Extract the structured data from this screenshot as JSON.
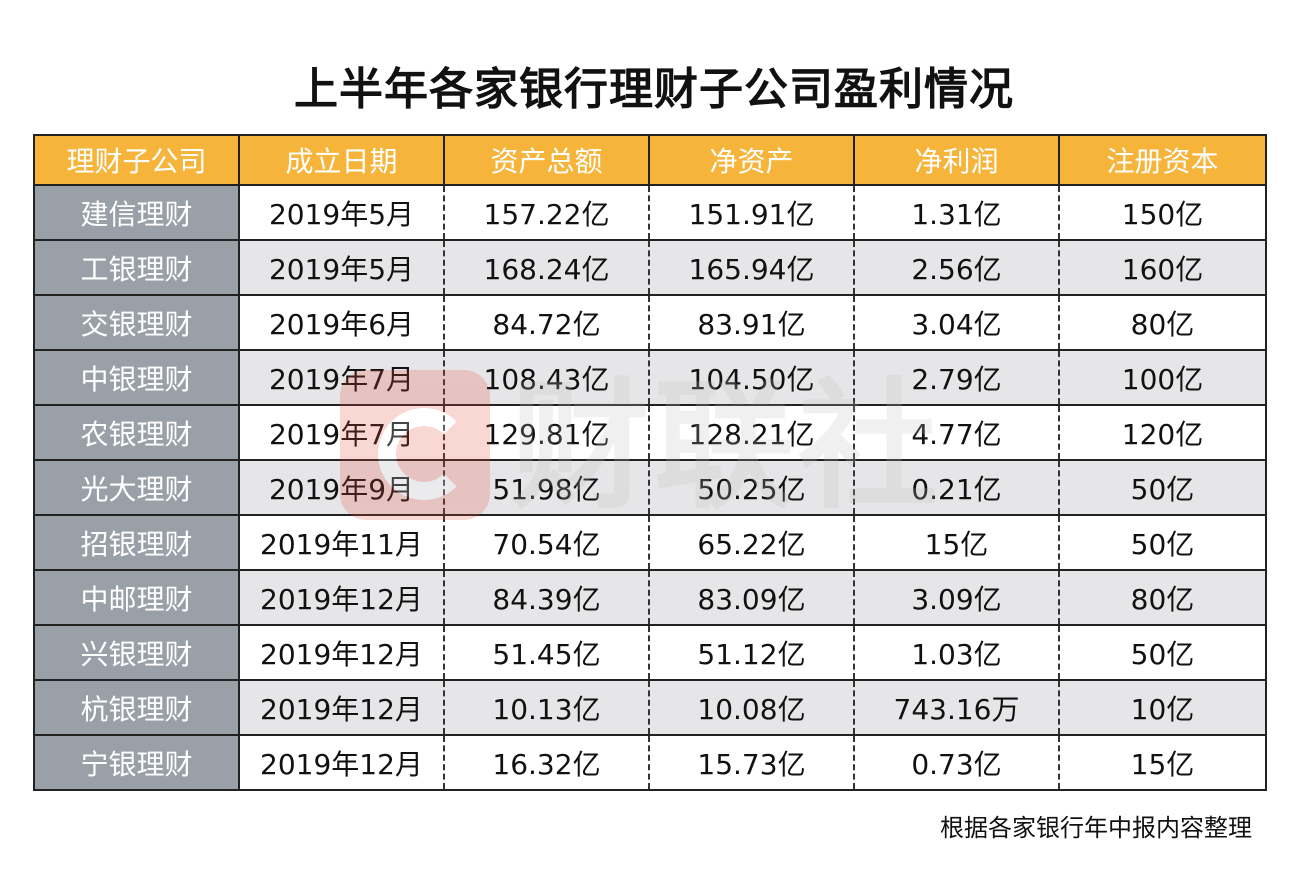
{
  "title": "上半年各家银行理财子公司盈利情况",
  "watermark": "财联社",
  "headers": [
    "理财子公司",
    "成立日期",
    "资产总额",
    "净资产",
    "净利润",
    "注册资本"
  ],
  "rows": [
    [
      "建信理财",
      "2019年5月",
      "157.22亿",
      "151.91亿",
      "1.31亿",
      "150亿"
    ],
    [
      "工银理财",
      "2019年5月",
      "168.24亿",
      "165.94亿",
      "2.56亿",
      "160亿"
    ],
    [
      "交银理财",
      "2019年6月",
      "84.72亿",
      "83.91亿",
      "3.04亿",
      "80亿"
    ],
    [
      "中银理财",
      "2019年7月",
      "108.43亿",
      "104.50亿",
      "2.79亿",
      "100亿"
    ],
    [
      "农银理财",
      "2019年7月",
      "129.81亿",
      "128.21亿",
      "4.77亿",
      "120亿"
    ],
    [
      "光大理财",
      "2019年9月",
      "51.98亿",
      "50.25亿",
      "0.21亿",
      "50亿"
    ],
    [
      "招银理财",
      "2019年11月",
      "70.54亿",
      "65.22亿",
      "15亿",
      "50亿"
    ],
    [
      "中邮理财",
      "2019年12月",
      "84.39亿",
      "83.09亿",
      "3.09亿",
      "80亿"
    ],
    [
      "兴银理财",
      "2019年12月",
      "51.45亿",
      "51.12亿",
      "1.03亿",
      "50亿"
    ],
    [
      "杭银理财",
      "2019年12月",
      "10.13亿",
      "10.08亿",
      "743.16万",
      "10亿"
    ],
    [
      "宁银理财",
      "2019年12月",
      "16.32亿",
      "15.73亿",
      "0.73亿",
      "15亿"
    ]
  ],
  "footnote": "根据各家银行年中报内容整理",
  "colors": {
    "header_bg": "#f6b43a",
    "company_bg": "#99a0a8",
    "shade_bg": "#e6e6e8",
    "logo": "#e84d3d"
  }
}
